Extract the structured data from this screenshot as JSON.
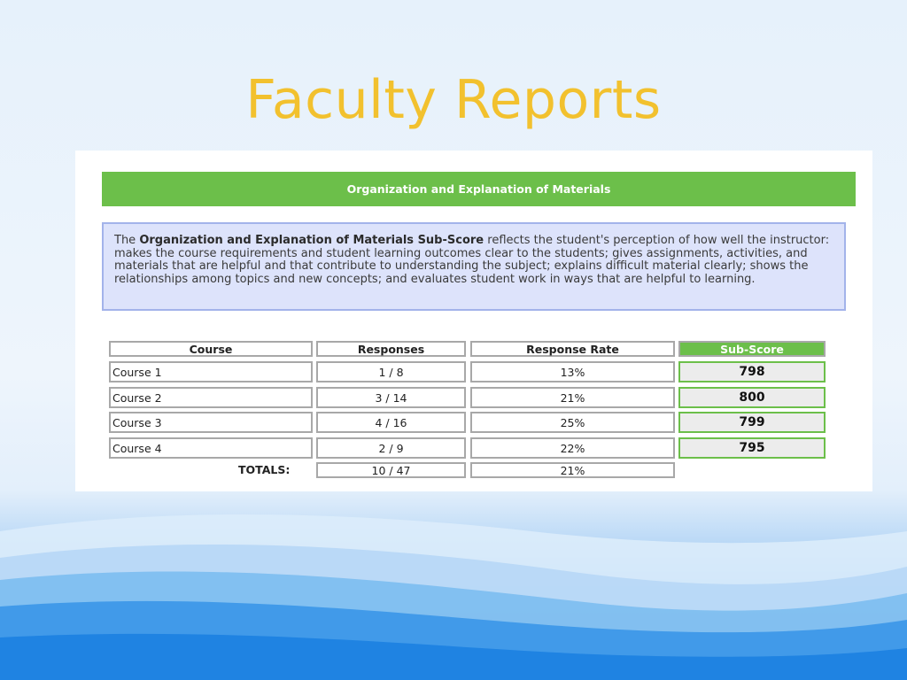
{
  "slide": {
    "title": "Faculty Reports"
  },
  "report": {
    "section_title": "Organization and Explanation of Materials",
    "description": {
      "prefix": "The ",
      "bold": "Organization and Explanation of Materials Sub-Score",
      "suffix": " reflects the student's perception of how well the instructor: makes the course requirements and student learning outcomes clear to the students; gives assignments, activities, and materials that are helpful and that contribute to understanding the subject; explains difficult material clearly; shows the relationships among topics and new concepts; and evaluates student work in ways that are helpful to learning."
    },
    "table": {
      "headers": {
        "course": "Course",
        "responses": "Responses",
        "response_rate": "Response Rate",
        "sub_score": "Sub-Score"
      },
      "rows": [
        {
          "course": "Course 1",
          "responses": "1 / 8",
          "response_rate": "13%",
          "sub_score": "798"
        },
        {
          "course": "Course 2",
          "responses": "3 / 14",
          "response_rate": "21%",
          "sub_score": "800"
        },
        {
          "course": "Course 3",
          "responses": "4 / 16",
          "response_rate": "25%",
          "sub_score": "799"
        },
        {
          "course": "Course 4",
          "responses": "2 / 9",
          "response_rate": "22%",
          "sub_score": "795"
        }
      ],
      "totals": {
        "label": "TOTALS:",
        "responses": "10 / 47",
        "response_rate": "21%"
      }
    }
  },
  "colors": {
    "title": "#f2c12e",
    "accent_green": "#6cbf4a",
    "description_bg": "#dde3fb",
    "description_border": "#a3b3ea"
  }
}
